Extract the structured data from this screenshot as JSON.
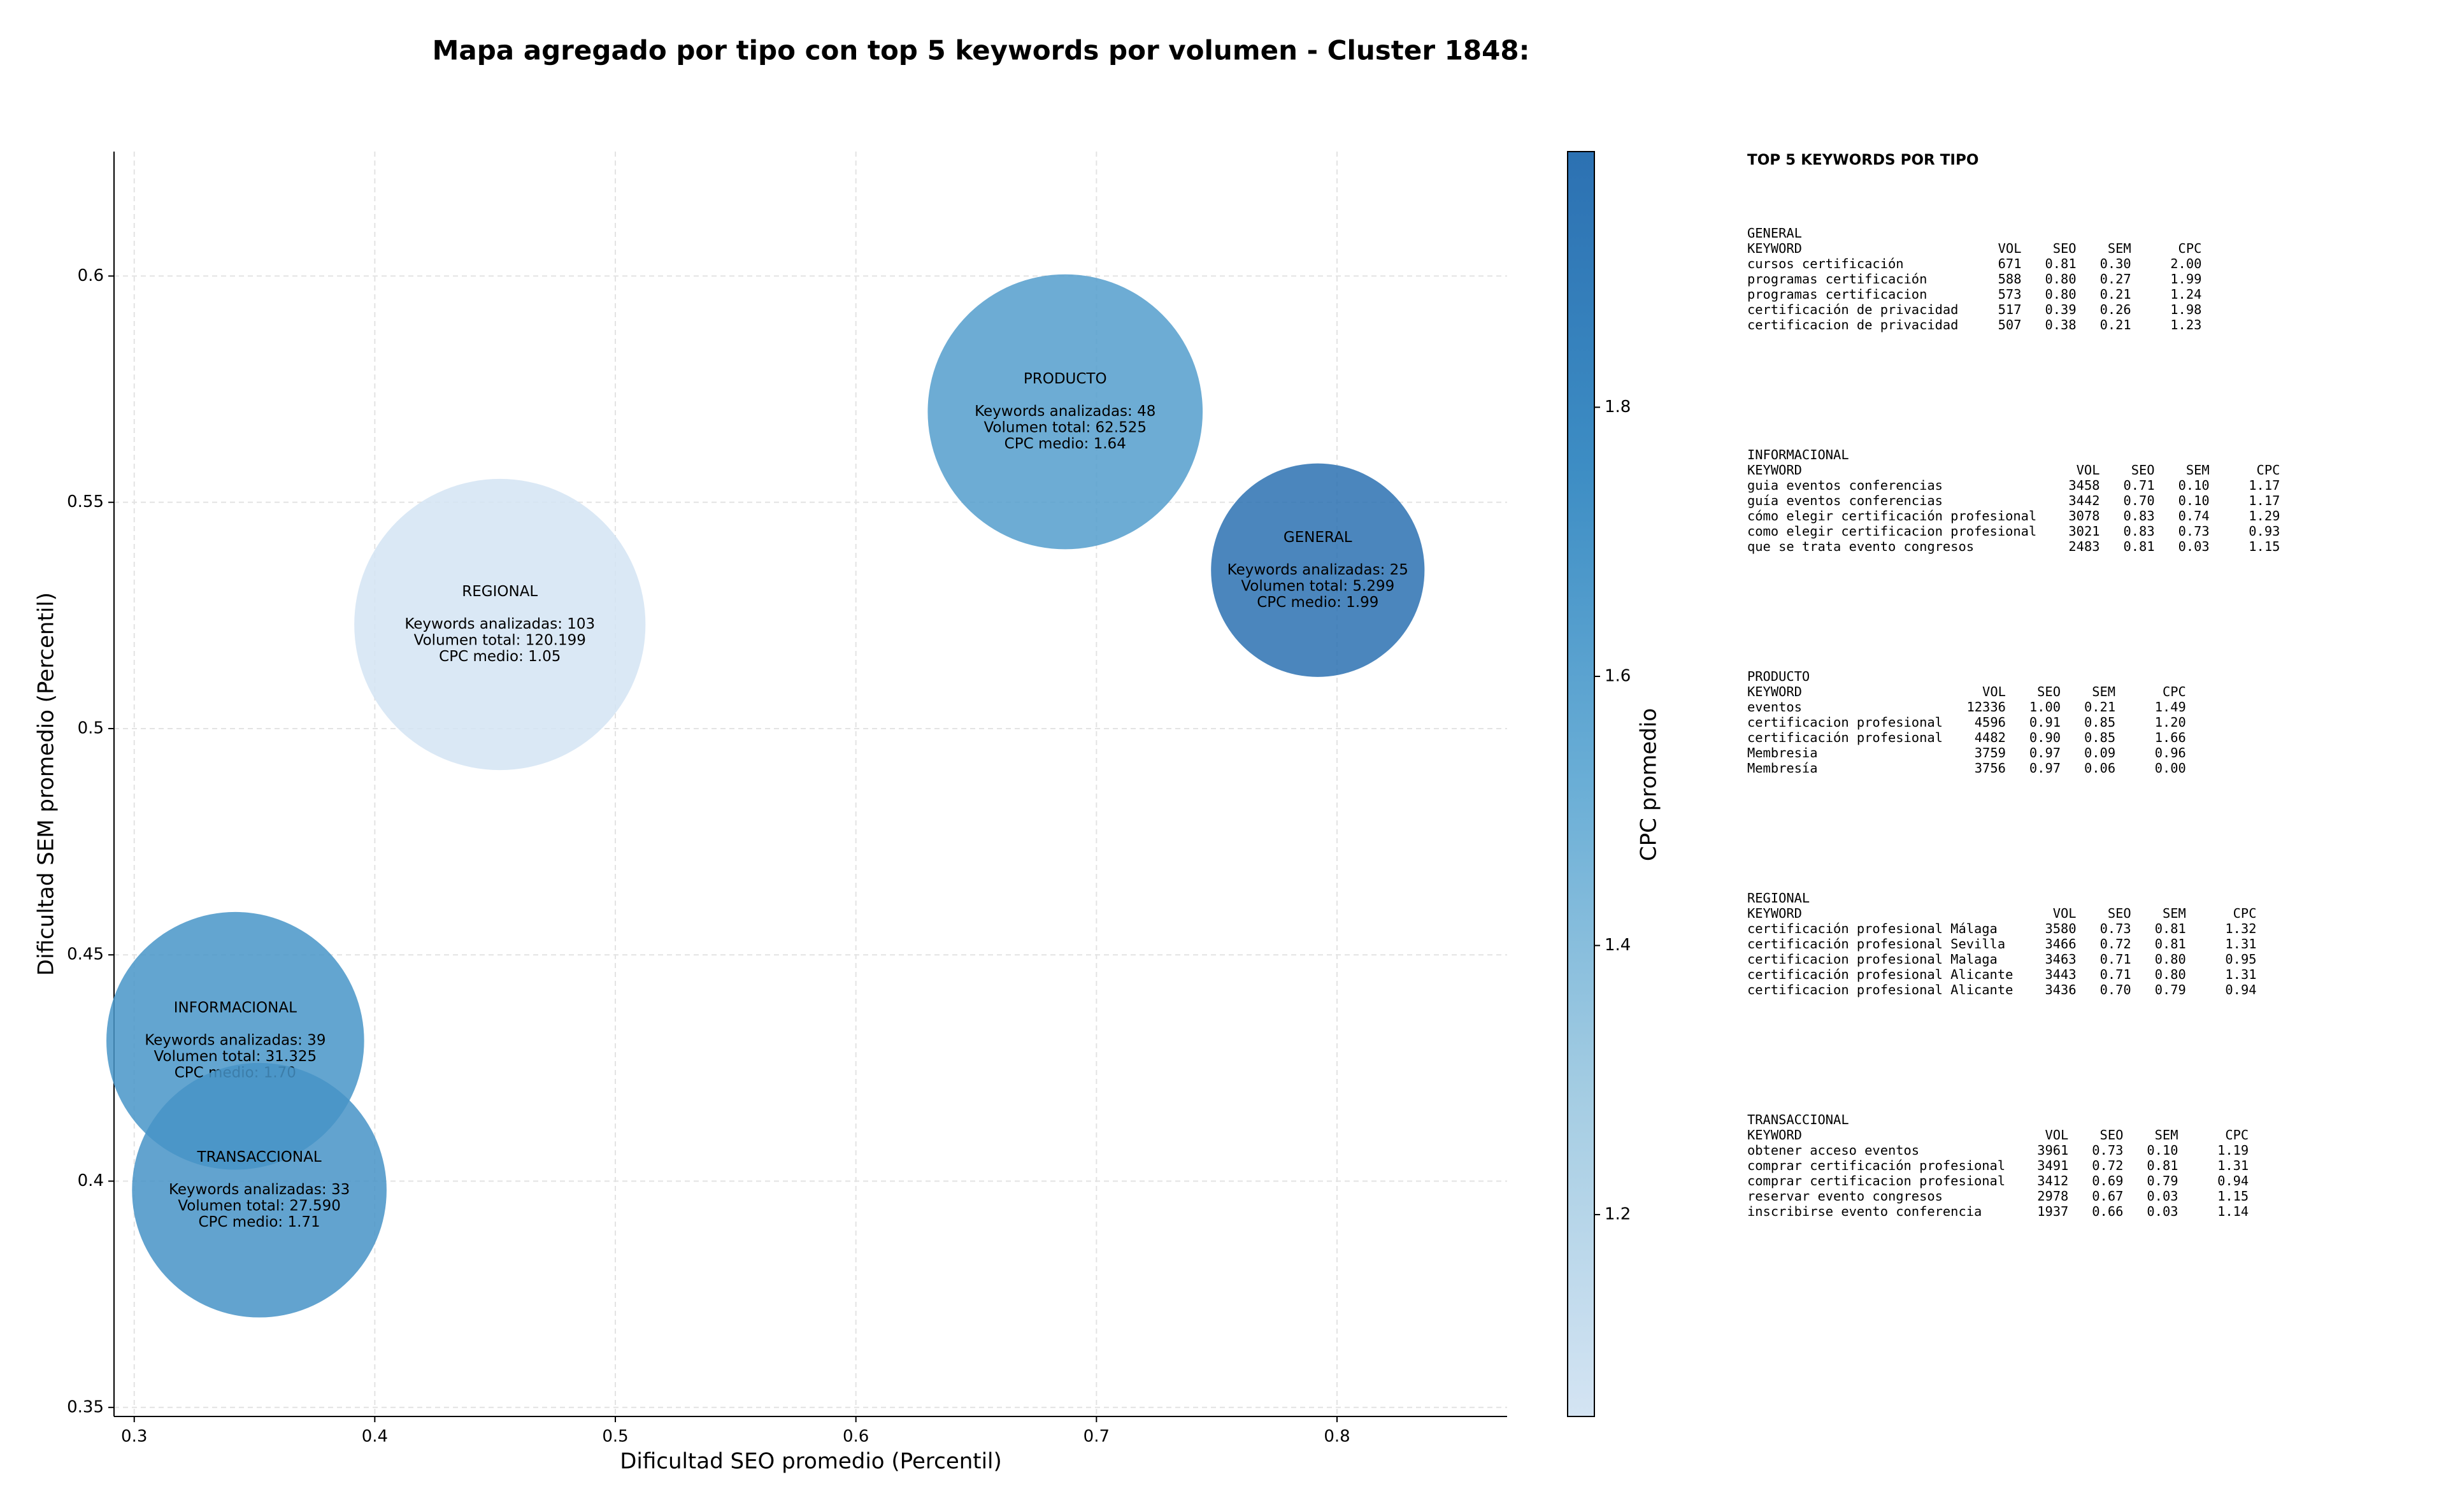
{
  "chart_data": {
    "type": "bubble",
    "title": "Mapa agregado por tipo con top 5 keywords por volumen - Cluster 1848:",
    "x_label": "Dificultad SEO promedio (Percentil)",
    "y_label": "Dificultad SEM promedio (Percentil)",
    "categories": [
      "GENERAL",
      "INFORMACIONAL",
      "PRODUCTO",
      "REGIONAL",
      "TRANSACCIONAL"
    ],
    "x": [
      0.792,
      0.342,
      0.687,
      0.452,
      0.352
    ],
    "values": [
      0.535,
      0.431,
      0.57,
      0.523,
      0.398
    ],
    "sizes": [
      5299,
      31325,
      62525,
      120199,
      27590
    ],
    "color_values": [
      1.99,
      1.7,
      1.64,
      1.05,
      1.71
    ],
    "annotations": [
      [
        "Keywords analizadas: 25",
        "Volumen total: 5.299",
        "CPC medio: 1.99"
      ],
      [
        "Keywords analizadas: 39",
        "Volumen total: 31.325",
        "CPC medio: 1.70"
      ],
      [
        "Keywords analizadas: 48",
        "Volumen total: 62.525",
        "CPC medio: 1.64"
      ],
      [
        "Keywords analizadas: 103",
        "Volumen total: 120.199",
        "CPC medio: 1.05"
      ],
      [
        "Keywords analizadas: 33",
        "Volumen total: 27.590",
        "CPC medio: 1.71"
      ]
    ],
    "colormap": [
      "#d4e4f3",
      "#a5cde3",
      "#6aaed6",
      "#3d8dc4",
      "#2c71b2"
    ],
    "xlim": [
      0.2916,
      0.8707
    ],
    "xticks": [
      0.3,
      0.4,
      0.5,
      0.6,
      0.7,
      0.8
    ],
    "ylim": [
      0.348,
      0.6275
    ],
    "yticks": [
      0.35,
      0.4,
      0.45,
      0.5,
      0.55,
      0.6
    ],
    "grid": true,
    "colorbar_label": "CPC promedio",
    "colorbar_lim": [
      1.05,
      1.99
    ],
    "colorbar_ticks": [
      1.2,
      1.4,
      1.6,
      1.8
    ]
  },
  "top_keywords": {
    "title": "TOP 5 KEYWORDS POR TIPO",
    "header": [
      "KEYWORD",
      "VOL",
      "SEO",
      "SEM",
      "CPC"
    ],
    "sections": [
      {
        "title": "GENERAL",
        "rows": [
          [
            "cursos certificación",
            "671",
            "0.81",
            "0.30",
            "2.00"
          ],
          [
            "programas certificación",
            "588",
            "0.80",
            "0.27",
            "1.99"
          ],
          [
            "programas certificacion",
            "573",
            "0.80",
            "0.21",
            "1.24"
          ],
          [
            "certificación de privacidad",
            "517",
            "0.39",
            "0.26",
            "1.98"
          ],
          [
            "certificacion de privacidad",
            "507",
            "0.38",
            "0.21",
            "1.23"
          ]
        ]
      },
      {
        "title": "INFORMACIONAL",
        "rows": [
          [
            "guia eventos conferencias",
            "3458",
            "0.71",
            "0.10",
            "1.17"
          ],
          [
            "guía eventos conferencias",
            "3442",
            "0.70",
            "0.10",
            "1.17"
          ],
          [
            "cómo elegir certificación profesional",
            "3078",
            "0.83",
            "0.74",
            "1.29"
          ],
          [
            "como elegir certificacion profesional",
            "3021",
            "0.83",
            "0.73",
            "0.93"
          ],
          [
            "que se trata evento congresos",
            "2483",
            "0.81",
            "0.03",
            "1.15"
          ]
        ]
      },
      {
        "title": "PRODUCTO",
        "rows": [
          [
            "eventos",
            "12336",
            "1.00",
            "0.21",
            "1.49"
          ],
          [
            "certificacion profesional",
            "4596",
            "0.91",
            "0.85",
            "1.20"
          ],
          [
            "certificación profesional",
            "4482",
            "0.90",
            "0.85",
            "1.66"
          ],
          [
            "Membresia",
            "3759",
            "0.97",
            "0.09",
            "0.96"
          ],
          [
            "Membresía",
            "3756",
            "0.97",
            "0.06",
            "0.00"
          ]
        ]
      },
      {
        "title": "REGIONAL",
        "rows": [
          [
            "certificación profesional Málaga",
            "3580",
            "0.73",
            "0.81",
            "1.32"
          ],
          [
            "certificación profesional Sevilla",
            "3466",
            "0.72",
            "0.81",
            "1.31"
          ],
          [
            "certificacion profesional Malaga",
            "3463",
            "0.71",
            "0.80",
            "0.95"
          ],
          [
            "certificación profesional Alicante",
            "3443",
            "0.71",
            "0.80",
            "1.31"
          ],
          [
            "certificacion profesional Alicante",
            "3436",
            "0.70",
            "0.79",
            "0.94"
          ]
        ]
      },
      {
        "title": "TRANSACCIONAL",
        "rows": [
          [
            "obtener acceso eventos",
            "3961",
            "0.73",
            "0.10",
            "1.19"
          ],
          [
            "comprar certificación profesional",
            "3491",
            "0.72",
            "0.81",
            "1.31"
          ],
          [
            "comprar certificacion profesional",
            "3412",
            "0.69",
            "0.79",
            "0.94"
          ],
          [
            "reservar evento congresos",
            "2978",
            "0.67",
            "0.03",
            "1.15"
          ],
          [
            "inscribirse evento conferencia",
            "1937",
            "0.66",
            "0.03",
            "1.14"
          ]
        ]
      }
    ]
  }
}
